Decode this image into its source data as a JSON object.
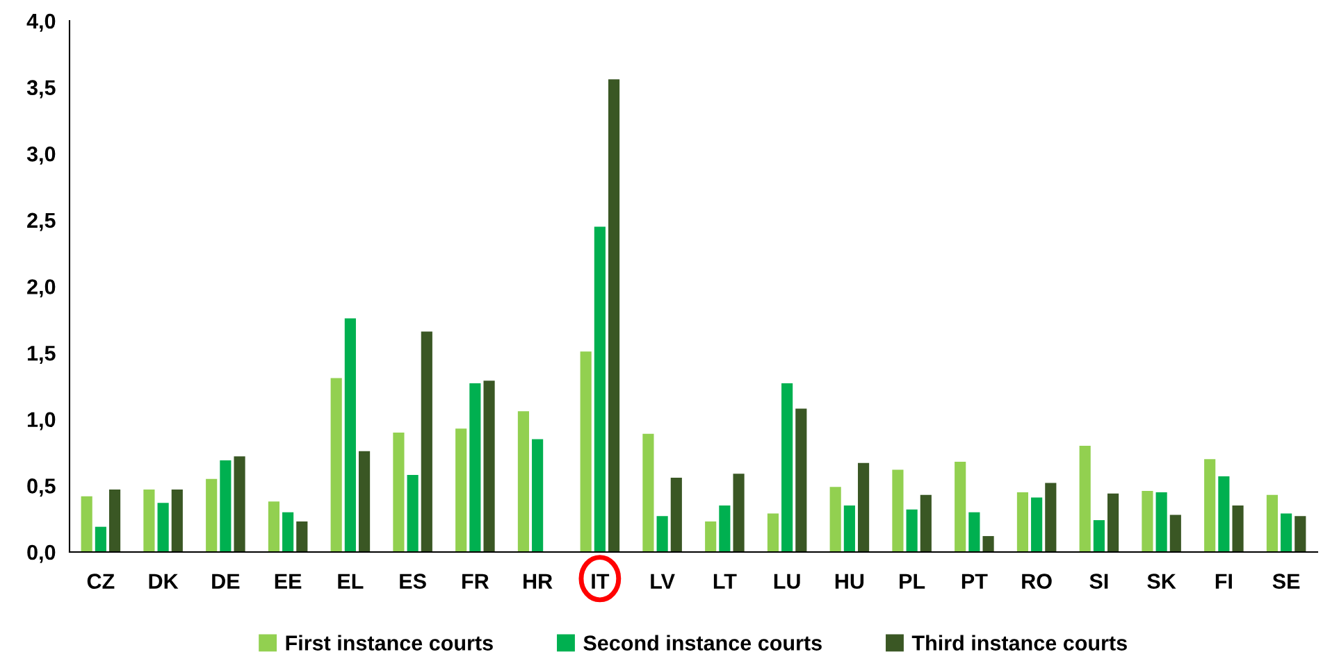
{
  "chart_data": {
    "type": "bar",
    "categories": [
      "CZ",
      "DK",
      "DE",
      "EE",
      "EL",
      "ES",
      "FR",
      "HR",
      "IT",
      "LV",
      "LT",
      "LU",
      "HU",
      "PL",
      "PT",
      "RO",
      "SI",
      "SK",
      "FI",
      "SE"
    ],
    "series": [
      {
        "name": "First instance courts",
        "color": "#92d050",
        "values": [
          0.42,
          0.47,
          0.55,
          0.38,
          1.31,
          0.9,
          0.93,
          1.06,
          1.51,
          0.89,
          0.23,
          0.29,
          0.49,
          0.62,
          0.68,
          0.45,
          0.8,
          0.46,
          0.7,
          0.43
        ]
      },
      {
        "name": "Second instance courts",
        "color": "#00b050",
        "values": [
          0.19,
          0.37,
          0.69,
          0.3,
          1.76,
          0.58,
          1.27,
          0.85,
          2.45,
          0.27,
          0.35,
          1.27,
          0.35,
          0.32,
          0.3,
          0.41,
          0.24,
          0.45,
          0.57,
          0.29
        ]
      },
      {
        "name": "Third instance courts",
        "color": "#3a5724",
        "values": [
          0.47,
          0.47,
          0.72,
          0.23,
          0.76,
          1.66,
          1.29,
          null,
          3.56,
          0.56,
          0.59,
          1.08,
          0.67,
          0.43,
          0.12,
          0.52,
          0.44,
          0.28,
          0.35,
          0.27
        ]
      }
    ],
    "ylim": [
      0,
      4.0
    ],
    "yticks": [
      {
        "value": 0,
        "label": "0,0"
      },
      {
        "value": 0.5,
        "label": "0,5"
      },
      {
        "value": 1.0,
        "label": "1,0"
      },
      {
        "value": 1.5,
        "label": "1,5"
      },
      {
        "value": 2.0,
        "label": "2,0"
      },
      {
        "value": 2.5,
        "label": "2,5"
      },
      {
        "value": 3.0,
        "label": "3,0"
      },
      {
        "value": 3.5,
        "label": "3,5"
      },
      {
        "value": 4.0,
        "label": "4,0"
      }
    ],
    "grid": false,
    "legend": "bottom"
  }
}
